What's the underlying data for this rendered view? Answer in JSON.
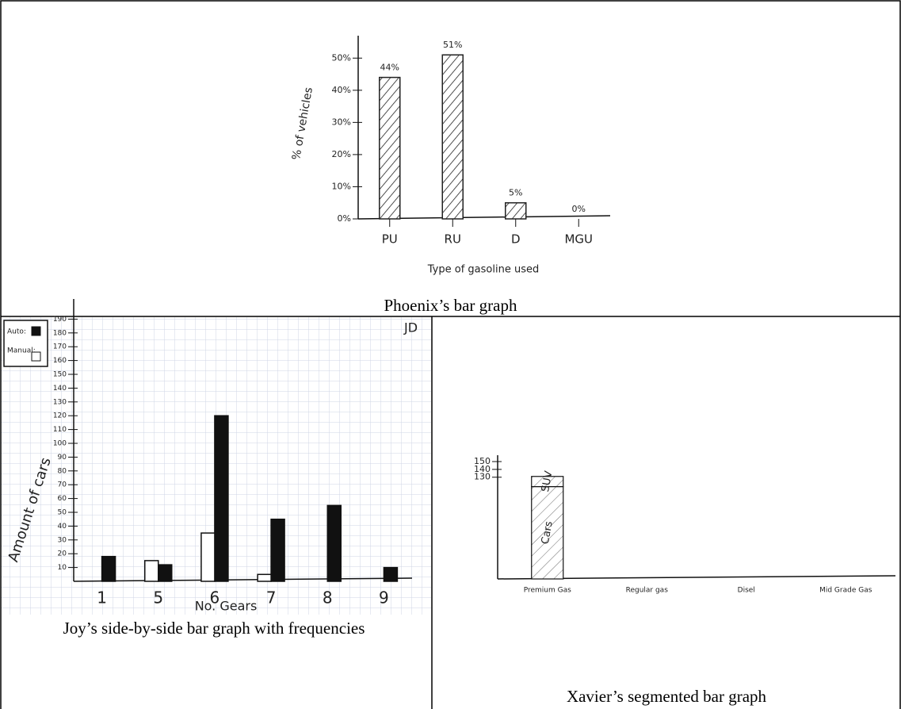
{
  "chart_data": [
    {
      "type": "bar",
      "caption": "Phoenix’s bar graph",
      "y_label": "% of vehicles",
      "x_label": "Type of gasoline used",
      "categories": [
        "PU",
        "RU",
        "D",
        "MGU"
      ],
      "values": [
        44,
        51,
        5,
        0
      ],
      "value_labels": [
        "44%",
        "51%",
        "5%",
        "0%"
      ],
      "ylim": [
        0,
        55
      ],
      "yticks": [
        {
          "value": 0,
          "label": "0%"
        },
        {
          "value": 10,
          "label": "10%"
        },
        {
          "value": 20,
          "label": "20%"
        },
        {
          "value": 30,
          "label": "30%"
        },
        {
          "value": 40,
          "label": "40%"
        },
        {
          "value": 50,
          "label": "50%"
        }
      ],
      "color": "#222222"
    },
    {
      "type": "grouped_bar",
      "caption": "Joy’s side-by-side bar graph with frequencies",
      "annotation": "JD",
      "y_label": "Amount of cars",
      "x_label": "No. Gears",
      "categories": [
        "1",
        "5",
        "6",
        "7",
        "8",
        "9"
      ],
      "series": [
        {
          "name": "Auto:",
          "color": "#111111",
          "values": [
            18,
            12,
            120,
            45,
            55,
            10
          ]
        },
        {
          "name": "Manual:",
          "color": "#ffffff",
          "values": [
            0,
            15,
            35,
            5,
            0,
            0
          ]
        }
      ],
      "ylim": [
        0,
        200
      ],
      "yticks": [
        10,
        20,
        30,
        40,
        50,
        60,
        70,
        80,
        90,
        100,
        110,
        120,
        130,
        140,
        150,
        160,
        170,
        180,
        190
      ]
    },
    {
      "type": "stacked_bar",
      "caption": "Xavier’s segmented bar graph",
      "categories": [
        "Premium Gas",
        "Regular gas",
        "Disel",
        "Mid Grade Gas"
      ],
      "series": [
        {
          "name": "Cars",
          "color": "#ffffff",
          "values": [
            118,
            0,
            0,
            0
          ]
        },
        {
          "name": "SUV",
          "color": "#ffffff",
          "values": [
            13,
            0,
            0,
            0
          ]
        }
      ],
      "ylim": [
        0,
        150
      ],
      "yticks": [
        130,
        140,
        150
      ]
    }
  ]
}
